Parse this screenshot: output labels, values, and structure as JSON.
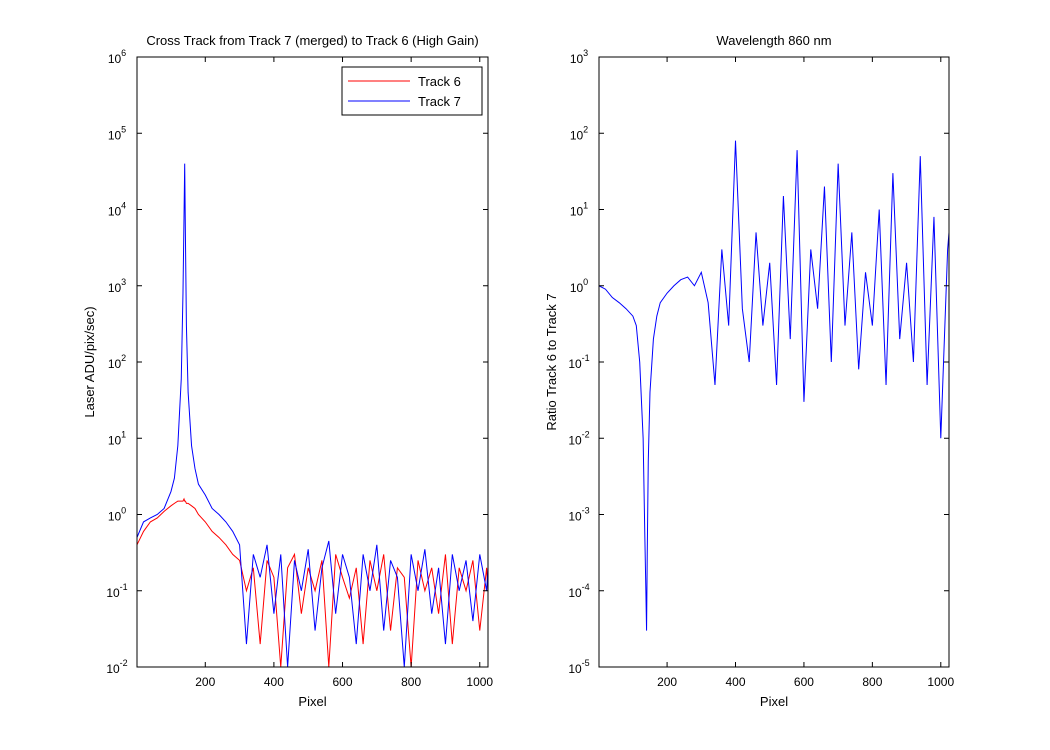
{
  "chart_data": [
    {
      "type": "line",
      "title": "Cross Track from Track 7 (merged) to Track 6 (High Gain)",
      "xlabel": "Pixel",
      "ylabel": "Laser ADU/pix/sec)",
      "yscale": "log",
      "legend": "northeast",
      "xlim": [
        1,
        1024
      ],
      "ylim": [
        0.01,
        1000000
      ],
      "xticks": [
        200,
        400,
        600,
        800,
        1000
      ],
      "yticks": [
        {
          "value": 0.01,
          "label": "10^-2"
        },
        {
          "value": 0.1,
          "label": "10^-1"
        },
        {
          "value": 1,
          "label": "10^0"
        },
        {
          "value": 10,
          "label": "10^1"
        },
        {
          "value": 100,
          "label": "10^2"
        },
        {
          "value": 1000,
          "label": "10^3"
        },
        {
          "value": 10000,
          "label": "10^4"
        },
        {
          "value": 100000,
          "label": "10^5"
        },
        {
          "value": 1000000,
          "label": "10^6"
        }
      ],
      "x": [
        1,
        20,
        40,
        60,
        80,
        100,
        110,
        120,
        130,
        135,
        138,
        140,
        142,
        145,
        150,
        160,
        170,
        180,
        200,
        220,
        240,
        260,
        280,
        300,
        320,
        340,
        360,
        380,
        400,
        420,
        440,
        460,
        480,
        500,
        520,
        540,
        560,
        580,
        600,
        620,
        640,
        660,
        680,
        700,
        720,
        740,
        760,
        780,
        800,
        820,
        840,
        860,
        880,
        900,
        920,
        940,
        960,
        980,
        1000,
        1020,
        1024
      ],
      "series": [
        {
          "name": "Track 6",
          "color": "#ff0000",
          "values": [
            0.4,
            0.6,
            0.8,
            0.9,
            1.1,
            1.3,
            1.4,
            1.5,
            1.5,
            1.5,
            1.6,
            1.5,
            1.5,
            1.4,
            1.4,
            1.3,
            1.2,
            1.0,
            0.8,
            0.6,
            0.5,
            0.4,
            0.3,
            0.25,
            0.1,
            0.2,
            0.02,
            0.25,
            0.15,
            0.01,
            0.2,
            0.3,
            0.05,
            0.2,
            0.1,
            0.25,
            0.01,
            0.3,
            0.15,
            0.08,
            0.2,
            0.02,
            0.25,
            0.1,
            0.3,
            0.03,
            0.2,
            0.15,
            0.01,
            0.25,
            0.1,
            0.2,
            0.05,
            0.3,
            0.02,
            0.2,
            0.1,
            0.25,
            0.03,
            0.2,
            0.1
          ]
        },
        {
          "name": "Track 7",
          "color": "#0000ff",
          "values": [
            0.5,
            0.8,
            0.9,
            1.0,
            1.2,
            2,
            3,
            8,
            60,
            800,
            8000,
            40000,
            5000,
            300,
            40,
            8,
            4,
            2.5,
            1.8,
            1.2,
            1.0,
            0.8,
            0.6,
            0.4,
            0.02,
            0.3,
            0.15,
            0.4,
            0.05,
            0.3,
            0.01,
            0.25,
            0.1,
            0.35,
            0.03,
            0.2,
            0.45,
            0.05,
            0.3,
            0.15,
            0.02,
            0.3,
            0.1,
            0.4,
            0.03,
            0.25,
            0.15,
            0.01,
            0.3,
            0.1,
            0.35,
            0.05,
            0.2,
            0.02,
            0.3,
            0.1,
            0.25,
            0.04,
            0.3,
            0.1,
            0.2
          ]
        }
      ]
    },
    {
      "type": "line",
      "title": "Wavelength 860 nm",
      "xlabel": "Pixel",
      "ylabel": "Ratio Track 6 to Track 7",
      "yscale": "log",
      "xlim": [
        1,
        1024
      ],
      "ylim": [
        1e-05,
        1000
      ],
      "xticks": [
        200,
        400,
        600,
        800,
        1000
      ],
      "yticks": [
        {
          "value": 1e-05,
          "label": "10^-5"
        },
        {
          "value": 0.0001,
          "label": "10^-4"
        },
        {
          "value": 0.001,
          "label": "10^-3"
        },
        {
          "value": 0.01,
          "label": "10^-2"
        },
        {
          "value": 0.1,
          "label": "10^-1"
        },
        {
          "value": 1,
          "label": "10^0"
        },
        {
          "value": 10,
          "label": "10^1"
        },
        {
          "value": 100,
          "label": "10^2"
        },
        {
          "value": 1000,
          "label": "10^3"
        }
      ],
      "x": [
        1,
        20,
        40,
        60,
        80,
        100,
        110,
        120,
        130,
        135,
        138,
        140,
        142,
        145,
        150,
        160,
        170,
        180,
        200,
        220,
        240,
        260,
        280,
        300,
        320,
        340,
        360,
        380,
        400,
        420,
        440,
        460,
        480,
        500,
        520,
        540,
        560,
        580,
        600,
        620,
        640,
        660,
        680,
        700,
        720,
        740,
        760,
        780,
        800,
        820,
        840,
        860,
        880,
        900,
        920,
        940,
        960,
        980,
        1000,
        1020,
        1024
      ],
      "series": [
        {
          "color": "#0000ff",
          "values": [
            1.0,
            0.9,
            0.7,
            0.6,
            0.5,
            0.4,
            0.3,
            0.1,
            0.01,
            0.0005,
            0.0001,
            3e-05,
            0.0003,
            0.005,
            0.04,
            0.2,
            0.4,
            0.6,
            0.8,
            1.0,
            1.2,
            1.3,
            1.0,
            1.5,
            0.6,
            0.05,
            3,
            0.3,
            80,
            0.5,
            0.1,
            5,
            0.3,
            2,
            0.05,
            15,
            0.2,
            60,
            0.03,
            3,
            0.5,
            20,
            0.1,
            40,
            0.3,
            5,
            0.08,
            1.5,
            0.3,
            10,
            0.05,
            30,
            0.2,
            2,
            0.1,
            50,
            0.05,
            8,
            0.01,
            3,
            5
          ]
        }
      ]
    }
  ]
}
